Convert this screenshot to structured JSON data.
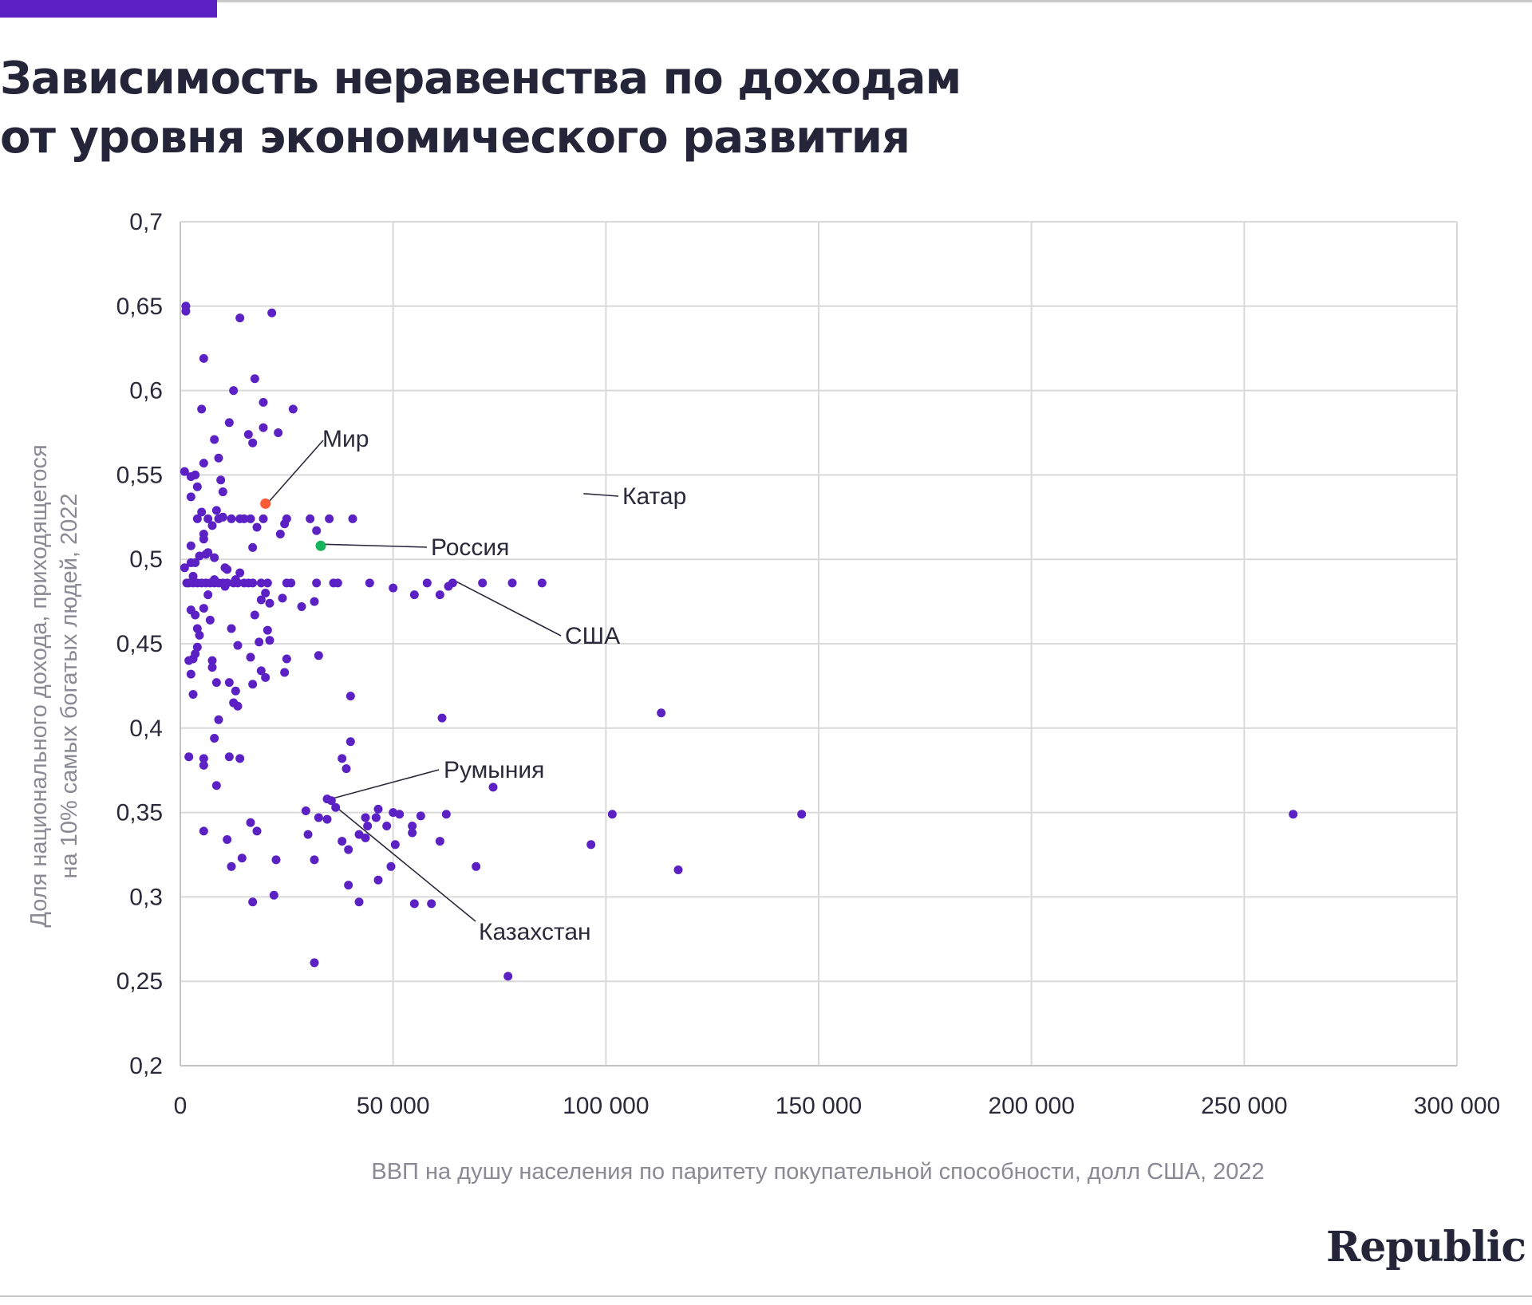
{
  "header": {
    "title_line1": "Зависимость неравенства по доходам",
    "title_line2": "от уровня экономического развития"
  },
  "logo": {
    "text": "Republic"
  },
  "colors": {
    "accent": "#5b21c4",
    "points": "#5b21c4",
    "world": "#ff5a36",
    "russia": "#17b35a",
    "grid": "#d9d9d9",
    "axis_title": "#8a8a94"
  },
  "chart_data": {
    "type": "scatter",
    "xlabel": "ВВП на душу населения по паритету покупательной способности, долл США, 2022",
    "ylabel_line1": "Доля национального дохода, приходящегося",
    "ylabel_line2": "на 10% самых богатых людей, 2022",
    "xlim": [
      0,
      300000
    ],
    "ylim": [
      0.2,
      0.7
    ],
    "grid": true,
    "x_ticks": [
      0,
      50000,
      100000,
      150000,
      200000,
      250000,
      300000
    ],
    "x_tick_labels": [
      "0",
      "50 000",
      "100 000",
      "150 000",
      "200 000",
      "250 000",
      "300 000"
    ],
    "y_ticks": [
      0.2,
      0.25,
      0.3,
      0.35,
      0.4,
      0.45,
      0.5,
      0.55,
      0.6,
      0.65,
      0.7
    ],
    "y_tick_labels": [
      "0,2",
      "0,25",
      "0,3",
      "0,35",
      "0,4",
      "0,45",
      "0,5",
      "0,55",
      "0,6",
      "0,65",
      "0,7"
    ],
    "annotations": [
      {
        "label": "Мир",
        "x": 20000,
        "y": 0.533
      },
      {
        "label": "Россия",
        "x": 33000,
        "y": 0.508
      },
      {
        "label": "Катар",
        "x": 94000,
        "y": 0.538
      },
      {
        "label": "США",
        "x": 64000,
        "y": 0.486
      },
      {
        "label": "Румыния",
        "x": 34500,
        "y": 0.357
      },
      {
        "label": "Казахстан",
        "x": 36000,
        "y": 0.352
      }
    ],
    "highlight_points": [
      {
        "name": "Мир",
        "x": 20000,
        "y": 0.533,
        "color": "#ff5a36"
      },
      {
        "name": "Россия",
        "x": 33000,
        "y": 0.508,
        "color": "#17b35a"
      }
    ],
    "series": [
      {
        "color": "#5b21c4",
        "points": [
          [
            1300,
            0.65
          ],
          [
            1300,
            0.647
          ],
          [
            14000,
            0.643
          ],
          [
            21500,
            0.646
          ],
          [
            5500,
            0.619
          ],
          [
            17500,
            0.607
          ],
          [
            12500,
            0.6
          ],
          [
            5000,
            0.589
          ],
          [
            19500,
            0.593
          ],
          [
            26500,
            0.589
          ],
          [
            11500,
            0.581
          ],
          [
            16000,
            0.574
          ],
          [
            19500,
            0.578
          ],
          [
            23000,
            0.575
          ],
          [
            8000,
            0.571
          ],
          [
            17000,
            0.569
          ],
          [
            9000,
            0.56
          ],
          [
            5500,
            0.557
          ],
          [
            1000,
            0.552
          ],
          [
            3500,
            0.55
          ],
          [
            2500,
            0.549
          ],
          [
            9500,
            0.547
          ],
          [
            4000,
            0.543
          ],
          [
            10000,
            0.54
          ],
          [
            2500,
            0.537
          ],
          [
            5000,
            0.528
          ],
          [
            8500,
            0.529
          ],
          [
            10000,
            0.525
          ],
          [
            4000,
            0.524
          ],
          [
            6500,
            0.524
          ],
          [
            9000,
            0.524
          ],
          [
            12000,
            0.524
          ],
          [
            14000,
            0.524
          ],
          [
            15000,
            0.524
          ],
          [
            16500,
            0.524
          ],
          [
            19500,
            0.524
          ],
          [
            25000,
            0.524
          ],
          [
            30500,
            0.524
          ],
          [
            35000,
            0.524
          ],
          [
            40500,
            0.524
          ],
          [
            7500,
            0.52
          ],
          [
            18000,
            0.519
          ],
          [
            24500,
            0.521
          ],
          [
            32000,
            0.517
          ],
          [
            23500,
            0.515
          ],
          [
            5500,
            0.515
          ],
          [
            5500,
            0.512
          ],
          [
            17000,
            0.507
          ],
          [
            2500,
            0.508
          ],
          [
            1000,
            0.495
          ],
          [
            2500,
            0.498
          ],
          [
            3500,
            0.498
          ],
          [
            4500,
            0.502
          ],
          [
            6000,
            0.503
          ],
          [
            6500,
            0.504
          ],
          [
            8000,
            0.501
          ],
          [
            10500,
            0.495
          ],
          [
            11000,
            0.494
          ],
          [
            14000,
            0.492
          ],
          [
            3000,
            0.49
          ],
          [
            1500,
            0.486
          ],
          [
            2000,
            0.486
          ],
          [
            3000,
            0.486
          ],
          [
            4000,
            0.486
          ],
          [
            5000,
            0.486
          ],
          [
            6000,
            0.486
          ],
          [
            7000,
            0.486
          ],
          [
            8000,
            0.486
          ],
          [
            9000,
            0.486
          ],
          [
            10000,
            0.486
          ],
          [
            11000,
            0.486
          ],
          [
            12500,
            0.486
          ],
          [
            13500,
            0.486
          ],
          [
            15000,
            0.486
          ],
          [
            16000,
            0.486
          ],
          [
            17000,
            0.486
          ],
          [
            19000,
            0.486
          ],
          [
            20500,
            0.486
          ],
          [
            25000,
            0.486
          ],
          [
            26000,
            0.486
          ],
          [
            32000,
            0.486
          ],
          [
            36000,
            0.486
          ],
          [
            37000,
            0.486
          ],
          [
            44500,
            0.486
          ],
          [
            58000,
            0.486
          ],
          [
            64000,
            0.486
          ],
          [
            71000,
            0.486
          ],
          [
            78000,
            0.486
          ],
          [
            85000,
            0.486
          ],
          [
            13000,
            0.488
          ],
          [
            8000,
            0.488
          ],
          [
            10500,
            0.484
          ],
          [
            50000,
            0.483
          ],
          [
            6500,
            0.479
          ],
          [
            19000,
            0.476
          ],
          [
            20000,
            0.48
          ],
          [
            24000,
            0.477
          ],
          [
            31500,
            0.475
          ],
          [
            21000,
            0.474
          ],
          [
            55000,
            0.479
          ],
          [
            61000,
            0.479
          ],
          [
            63000,
            0.484
          ],
          [
            2500,
            0.47
          ],
          [
            3500,
            0.467
          ],
          [
            5500,
            0.471
          ],
          [
            28500,
            0.472
          ],
          [
            17500,
            0.467
          ],
          [
            7000,
            0.464
          ],
          [
            4000,
            0.459
          ],
          [
            12000,
            0.459
          ],
          [
            20500,
            0.458
          ],
          [
            4500,
            0.455
          ],
          [
            18500,
            0.451
          ],
          [
            21000,
            0.452
          ],
          [
            4000,
            0.448
          ],
          [
            13500,
            0.449
          ],
          [
            32500,
            0.443
          ],
          [
            25000,
            0.441
          ],
          [
            16500,
            0.442
          ],
          [
            3000,
            0.441
          ],
          [
            2000,
            0.44
          ],
          [
            3500,
            0.444
          ],
          [
            7500,
            0.44
          ],
          [
            7500,
            0.436
          ],
          [
            19000,
            0.434
          ],
          [
            24500,
            0.433
          ],
          [
            2500,
            0.432
          ],
          [
            8500,
            0.427
          ],
          [
            11500,
            0.427
          ],
          [
            20000,
            0.43
          ],
          [
            17000,
            0.426
          ],
          [
            13000,
            0.422
          ],
          [
            3000,
            0.42
          ],
          [
            40000,
            0.419
          ],
          [
            12500,
            0.415
          ],
          [
            13500,
            0.413
          ],
          [
            9000,
            0.405
          ],
          [
            61500,
            0.406
          ],
          [
            113000,
            0.409
          ],
          [
            8000,
            0.394
          ],
          [
            40000,
            0.392
          ],
          [
            2000,
            0.383
          ],
          [
            5500,
            0.382
          ],
          [
            11500,
            0.383
          ],
          [
            14000,
            0.382
          ],
          [
            38000,
            0.382
          ],
          [
            5500,
            0.378
          ],
          [
            39000,
            0.376
          ],
          [
            8500,
            0.366
          ],
          [
            73500,
            0.365
          ],
          [
            34500,
            0.358
          ],
          [
            35500,
            0.357
          ],
          [
            36500,
            0.353
          ],
          [
            46500,
            0.352
          ],
          [
            29500,
            0.351
          ],
          [
            50000,
            0.35
          ],
          [
            51500,
            0.349
          ],
          [
            56500,
            0.348
          ],
          [
            62500,
            0.349
          ],
          [
            101500,
            0.349
          ],
          [
            146000,
            0.349
          ],
          [
            261500,
            0.349
          ],
          [
            32500,
            0.347
          ],
          [
            34500,
            0.346
          ],
          [
            43500,
            0.347
          ],
          [
            46000,
            0.347
          ],
          [
            16500,
            0.344
          ],
          [
            44000,
            0.342
          ],
          [
            48500,
            0.342
          ],
          [
            54500,
            0.342
          ],
          [
            5500,
            0.339
          ],
          [
            18000,
            0.339
          ],
          [
            30000,
            0.337
          ],
          [
            42000,
            0.337
          ],
          [
            54500,
            0.338
          ],
          [
            11000,
            0.334
          ],
          [
            38000,
            0.333
          ],
          [
            43500,
            0.335
          ],
          [
            50500,
            0.331
          ],
          [
            61000,
            0.333
          ],
          [
            96500,
            0.331
          ],
          [
            39500,
            0.328
          ],
          [
            14500,
            0.323
          ],
          [
            22500,
            0.322
          ],
          [
            31500,
            0.322
          ],
          [
            12000,
            0.318
          ],
          [
            49500,
            0.318
          ],
          [
            69500,
            0.318
          ],
          [
            117000,
            0.316
          ],
          [
            46500,
            0.31
          ],
          [
            39500,
            0.307
          ],
          [
            22000,
            0.301
          ],
          [
            17000,
            0.297
          ],
          [
            42000,
            0.297
          ],
          [
            55000,
            0.296
          ],
          [
            59000,
            0.296
          ],
          [
            31500,
            0.261
          ],
          [
            77000,
            0.253
          ]
        ]
      }
    ]
  }
}
